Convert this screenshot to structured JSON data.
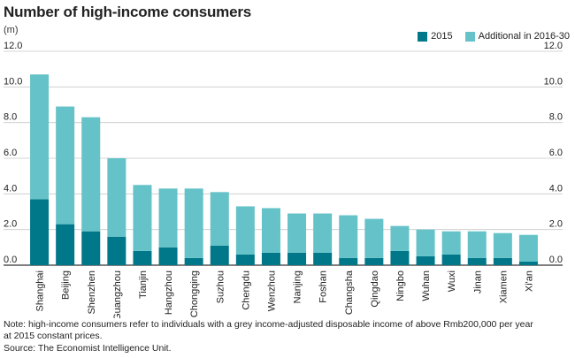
{
  "chart_data": {
    "type": "bar",
    "stacked": true,
    "title": "Number of high-income consumers",
    "unit_label": "(m)",
    "ylim": [
      0,
      12
    ],
    "yticks": [
      "0.0",
      "2.0",
      "4.0",
      "6.0",
      "8.0",
      "10.0",
      "12.0"
    ],
    "grid": true,
    "legend_position": "top-right",
    "categories": [
      "Shanghai",
      "Beijing",
      "Shenzhen",
      "Guangzhou",
      "Tianjin",
      "Hangzhou",
      "Chongqing",
      "Suzhou",
      "Chengdu",
      "Wenzhou",
      "Nanjing",
      "Foshan",
      "Changsha",
      "Qingdao",
      "Ningbo",
      "Wuhan",
      "Wuxi",
      "Jinan",
      "Xiamen",
      "Xi'an"
    ],
    "series": [
      {
        "name": "2015",
        "color": "#00788a",
        "values": [
          3.7,
          2.3,
          1.9,
          1.6,
          0.8,
          1.0,
          0.4,
          1.1,
          0.6,
          0.7,
          0.7,
          0.7,
          0.4,
          0.4,
          0.8,
          0.5,
          0.6,
          0.4,
          0.4,
          0.2
        ]
      },
      {
        "name": "Additional in 2016-30",
        "color": "#64c2c8",
        "values": [
          7.0,
          6.6,
          6.4,
          4.4,
          3.7,
          3.3,
          3.9,
          3.0,
          2.7,
          2.5,
          2.2,
          2.2,
          2.4,
          2.2,
          1.4,
          1.5,
          1.3,
          1.5,
          1.4,
          1.5
        ]
      }
    ]
  },
  "footer": {
    "note_line1": "Note: high-income consumers refer to individuals with a grey income-adjusted disposable income of above Rmb200,000 per year",
    "note_line2": "at 2015 constant prices.",
    "source": "Source: The Economist Intelligence Unit."
  },
  "colors": {
    "grid": "#c9c9c9",
    "axis": "#333333",
    "text": "#222222"
  }
}
